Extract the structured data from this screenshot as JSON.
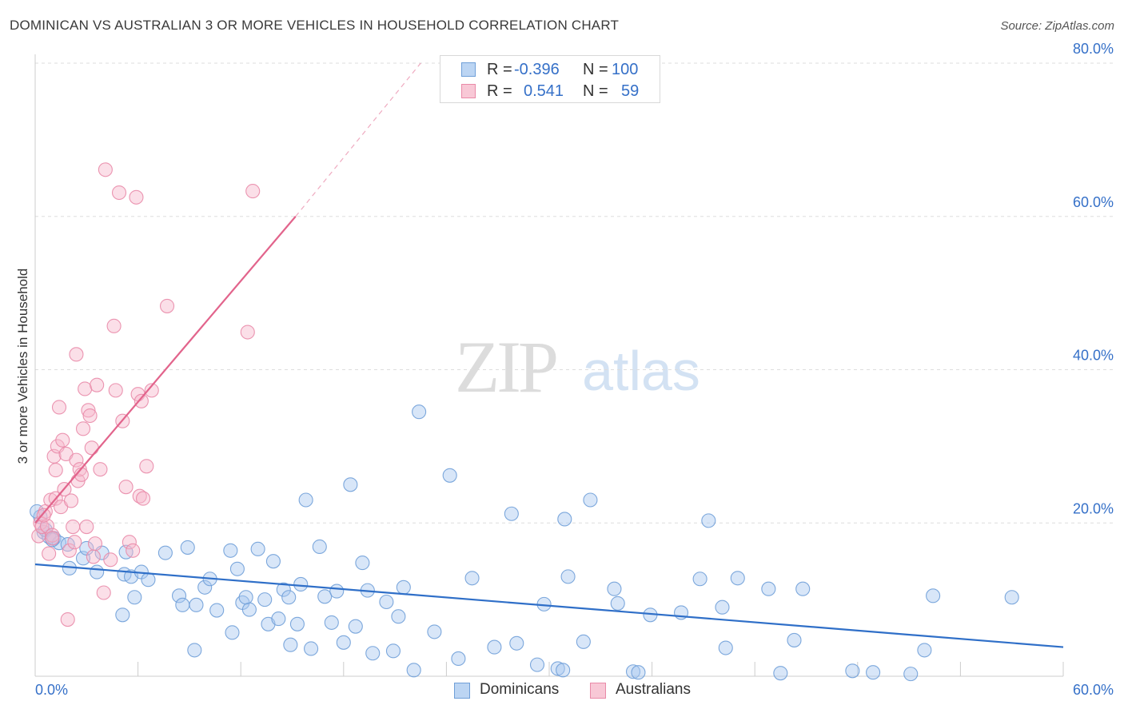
{
  "header": {
    "title": "DOMINICAN VS AUSTRALIAN 3 OR MORE VEHICLES IN HOUSEHOLD CORRELATION CHART",
    "source": "Source: ZipAtlas.com"
  },
  "stats": {
    "rows": [
      {
        "r_label": "R =",
        "r_value": "-0.396",
        "n_label": "N =",
        "n_value": "100"
      },
      {
        "r_label": "R =",
        "r_value": "0.541",
        "n_label": "N =",
        "n_value": "59"
      }
    ]
  },
  "legend": {
    "items": [
      {
        "label": "Dominicans"
      },
      {
        "label": "Australians"
      }
    ]
  },
  "watermark": {
    "zip": "ZIP",
    "atlas": "atlas"
  },
  "colors": {
    "blue_fill": "#a9c8ef",
    "blue_stroke": "#6f9fd8",
    "blue_line": "#2f6fc8",
    "pink_fill": "#f6b8cb",
    "pink_stroke": "#e98aa8",
    "pink_line": "#e2648c",
    "axis_text": "#3570c8",
    "grid": "#dddddd"
  },
  "chart_data": {
    "type": "scatter",
    "title": "DOMINICAN VS AUSTRALIAN 3 OR MORE VEHICLES IN HOUSEHOLD CORRELATION CHART",
    "xlabel": "",
    "ylabel": "3 or more Vehicles in Household",
    "xlim": [
      0,
      60
    ],
    "ylim": [
      0,
      80
    ],
    "x_tick_labels": [
      "0.0%",
      "60.0%"
    ],
    "y_tick_labels": [
      "20.0%",
      "40.0%",
      "60.0%",
      "80.0%"
    ],
    "y_ticks": [
      20,
      40,
      60,
      80
    ],
    "x_minor_ticks": [
      6,
      12,
      18,
      24,
      30,
      36,
      42,
      48,
      54,
      60
    ],
    "grid": true,
    "legend_position": "bottom-center",
    "series": [
      {
        "name": "Dominicans",
        "color": "#6f9fd8",
        "trend": {
          "x": [
            0,
            60
          ],
          "y": [
            14.6,
            3.8
          ],
          "dashed_extension": false
        },
        "points": [
          [
            0.3,
            20.8
          ],
          [
            0.5,
            18.8
          ],
          [
            0.8,
            18.2
          ],
          [
            1.1,
            18.0
          ],
          [
            1.4,
            17.4
          ],
          [
            1.9,
            17.2
          ],
          [
            2.0,
            14.1
          ],
          [
            2.8,
            15.4
          ],
          [
            3.0,
            16.7
          ],
          [
            3.6,
            13.6
          ],
          [
            3.9,
            16.1
          ],
          [
            5.1,
            8.0
          ],
          [
            5.2,
            13.3
          ],
          [
            5.3,
            16.2
          ],
          [
            5.6,
            13.0
          ],
          [
            5.8,
            10.3
          ],
          [
            6.2,
            13.6
          ],
          [
            6.6,
            12.6
          ],
          [
            7.6,
            16.1
          ],
          [
            8.4,
            10.5
          ],
          [
            8.6,
            9.3
          ],
          [
            8.9,
            16.8
          ],
          [
            9.3,
            3.4
          ],
          [
            9.4,
            9.3
          ],
          [
            9.9,
            11.6
          ],
          [
            10.2,
            12.7
          ],
          [
            10.6,
            8.6
          ],
          [
            11.4,
            16.4
          ],
          [
            11.5,
            5.7
          ],
          [
            11.8,
            14.0
          ],
          [
            12.1,
            9.6
          ],
          [
            12.5,
            8.7
          ],
          [
            12.3,
            10.3
          ],
          [
            13.0,
            16.6
          ],
          [
            13.4,
            10.0
          ],
          [
            13.6,
            6.8
          ],
          [
            13.9,
            15.0
          ],
          [
            14.2,
            7.5
          ],
          [
            14.5,
            11.3
          ],
          [
            14.8,
            10.3
          ],
          [
            14.9,
            4.1
          ],
          [
            15.3,
            6.8
          ],
          [
            15.5,
            12.0
          ],
          [
            15.8,
            23.0
          ],
          [
            16.1,
            3.6
          ],
          [
            16.6,
            16.9
          ],
          [
            16.9,
            10.4
          ],
          [
            17.3,
            7.0
          ],
          [
            17.6,
            11.1
          ],
          [
            18.0,
            4.4
          ],
          [
            18.4,
            25.0
          ],
          [
            18.7,
            6.5
          ],
          [
            19.1,
            14.8
          ],
          [
            19.4,
            11.2
          ],
          [
            19.7,
            3.0
          ],
          [
            20.5,
            9.7
          ],
          [
            20.9,
            3.3
          ],
          [
            21.2,
            7.8
          ],
          [
            21.5,
            11.6
          ],
          [
            22.1,
            0.8
          ],
          [
            22.4,
            34.5
          ],
          [
            23.3,
            5.8
          ],
          [
            24.2,
            26.2
          ],
          [
            24.7,
            2.3
          ],
          [
            25.5,
            12.8
          ],
          [
            26.8,
            3.8
          ],
          [
            27.8,
            21.2
          ],
          [
            28.1,
            4.3
          ],
          [
            29.3,
            1.5
          ],
          [
            29.7,
            9.4
          ],
          [
            30.5,
            1.0
          ],
          [
            30.9,
            20.5
          ],
          [
            30.8,
            0.8
          ],
          [
            31.1,
            13.0
          ],
          [
            32.0,
            4.5
          ],
          [
            32.4,
            23.0
          ],
          [
            33.8,
            11.4
          ],
          [
            34.0,
            9.5
          ],
          [
            34.9,
            0.6
          ],
          [
            35.2,
            0.5
          ],
          [
            35.9,
            8.0
          ],
          [
            37.7,
            8.3
          ],
          [
            38.8,
            12.7
          ],
          [
            39.3,
            20.3
          ],
          [
            40.1,
            9.0
          ],
          [
            40.3,
            3.7
          ],
          [
            41.0,
            12.8
          ],
          [
            42.8,
            11.4
          ],
          [
            43.5,
            0.4
          ],
          [
            44.3,
            4.7
          ],
          [
            44.8,
            11.4
          ],
          [
            47.7,
            0.7
          ],
          [
            48.9,
            0.5
          ],
          [
            51.1,
            0.3
          ],
          [
            51.9,
            3.4
          ],
          [
            52.4,
            10.5
          ],
          [
            57.0,
            10.3
          ],
          [
            0.1,
            21.5
          ],
          [
            0.6,
            19.1
          ],
          [
            1.0,
            17.8
          ]
        ]
      },
      {
        "name": "Australians",
        "color": "#e98aa8",
        "trend": {
          "x": [
            0,
            15.2
          ],
          "y": [
            20.0,
            60.0
          ],
          "dashed_extension": true,
          "dashed_to": [
            22.5,
            80.0
          ]
        },
        "points": [
          [
            0.2,
            18.3
          ],
          [
            0.3,
            20.0
          ],
          [
            0.4,
            19.5
          ],
          [
            0.6,
            21.5
          ],
          [
            0.7,
            19.6
          ],
          [
            0.8,
            16.0
          ],
          [
            0.9,
            23.0
          ],
          [
            1.0,
            18.4
          ],
          [
            1.1,
            28.7
          ],
          [
            1.2,
            23.2
          ],
          [
            1.2,
            26.9
          ],
          [
            1.3,
            30.0
          ],
          [
            1.4,
            35.1
          ],
          [
            1.5,
            22.1
          ],
          [
            1.6,
            30.8
          ],
          [
            1.7,
            24.4
          ],
          [
            1.8,
            29.0
          ],
          [
            1.9,
            7.4
          ],
          [
            2.0,
            16.4
          ],
          [
            2.1,
            22.9
          ],
          [
            2.2,
            19.5
          ],
          [
            2.3,
            17.5
          ],
          [
            2.4,
            42.0
          ],
          [
            2.4,
            28.2
          ],
          [
            2.5,
            25.5
          ],
          [
            2.6,
            27.0
          ],
          [
            2.7,
            26.3
          ],
          [
            2.8,
            32.3
          ],
          [
            2.9,
            37.5
          ],
          [
            3.0,
            19.5
          ],
          [
            3.1,
            34.7
          ],
          [
            3.2,
            34.0
          ],
          [
            3.3,
            29.8
          ],
          [
            3.4,
            15.6
          ],
          [
            3.5,
            17.3
          ],
          [
            3.6,
            38.0
          ],
          [
            3.8,
            27.0
          ],
          [
            4.0,
            10.9
          ],
          [
            4.1,
            66.1
          ],
          [
            4.4,
            15.2
          ],
          [
            4.6,
            45.7
          ],
          [
            4.7,
            37.3
          ],
          [
            4.9,
            63.1
          ],
          [
            5.1,
            33.3
          ],
          [
            5.3,
            24.7
          ],
          [
            5.5,
            17.5
          ],
          [
            5.7,
            16.4
          ],
          [
            5.9,
            62.5
          ],
          [
            6.0,
            36.8
          ],
          [
            6.1,
            23.5
          ],
          [
            6.2,
            35.9
          ],
          [
            6.3,
            23.2
          ],
          [
            6.5,
            27.4
          ],
          [
            6.8,
            37.3
          ],
          [
            7.7,
            48.3
          ],
          [
            12.4,
            44.9
          ],
          [
            12.7,
            63.3
          ],
          [
            0.5,
            21.0
          ],
          [
            1.0,
            18.0
          ]
        ]
      }
    ]
  }
}
